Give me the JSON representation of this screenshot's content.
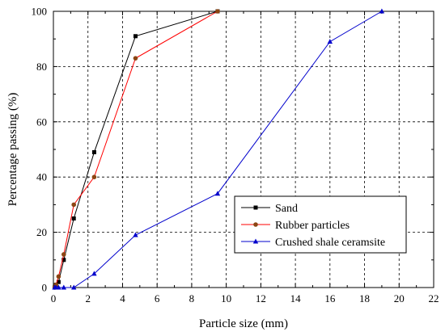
{
  "chart_data": {
    "type": "line",
    "xlabel": "Particle size (mm)",
    "ylabel": "Percentage passing (%)",
    "xlim": [
      0,
      22
    ],
    "ylim": [
      0,
      100
    ],
    "x_ticks": [
      "0",
      "2",
      "4",
      "6",
      "8",
      "10",
      "12",
      "14",
      "16",
      "18",
      "20",
      "22"
    ],
    "y_ticks": [
      "0",
      "20",
      "40",
      "60",
      "80",
      "100"
    ],
    "grid": "dashed",
    "legend_position": "lower-right",
    "series": [
      {
        "name": "Sand",
        "color": "#000000",
        "marker": "square",
        "x": [
          0.075,
          0.15,
          0.3,
          0.6,
          1.18,
          2.36,
          4.75,
          9.5
        ],
        "y": [
          0,
          1,
          2,
          10,
          25,
          49,
          91,
          100
        ]
      },
      {
        "name": "Rubber particles",
        "color": "#ff0000",
        "marker_color": "#8b4513",
        "marker": "circle",
        "x": [
          0.075,
          0.15,
          0.3,
          0.6,
          1.18,
          2.36,
          4.75,
          9.5
        ],
        "y": [
          0,
          1,
          4,
          12,
          30,
          40,
          83,
          100
        ]
      },
      {
        "name": "Crushed shale ceramsite",
        "color": "#0000cc",
        "marker": "triangle",
        "x": [
          0.075,
          0.15,
          0.3,
          0.6,
          1.18,
          2.36,
          4.75,
          9.5,
          16,
          19
        ],
        "y": [
          0,
          0,
          0,
          0,
          0,
          5,
          19,
          34,
          89,
          100
        ]
      }
    ]
  }
}
